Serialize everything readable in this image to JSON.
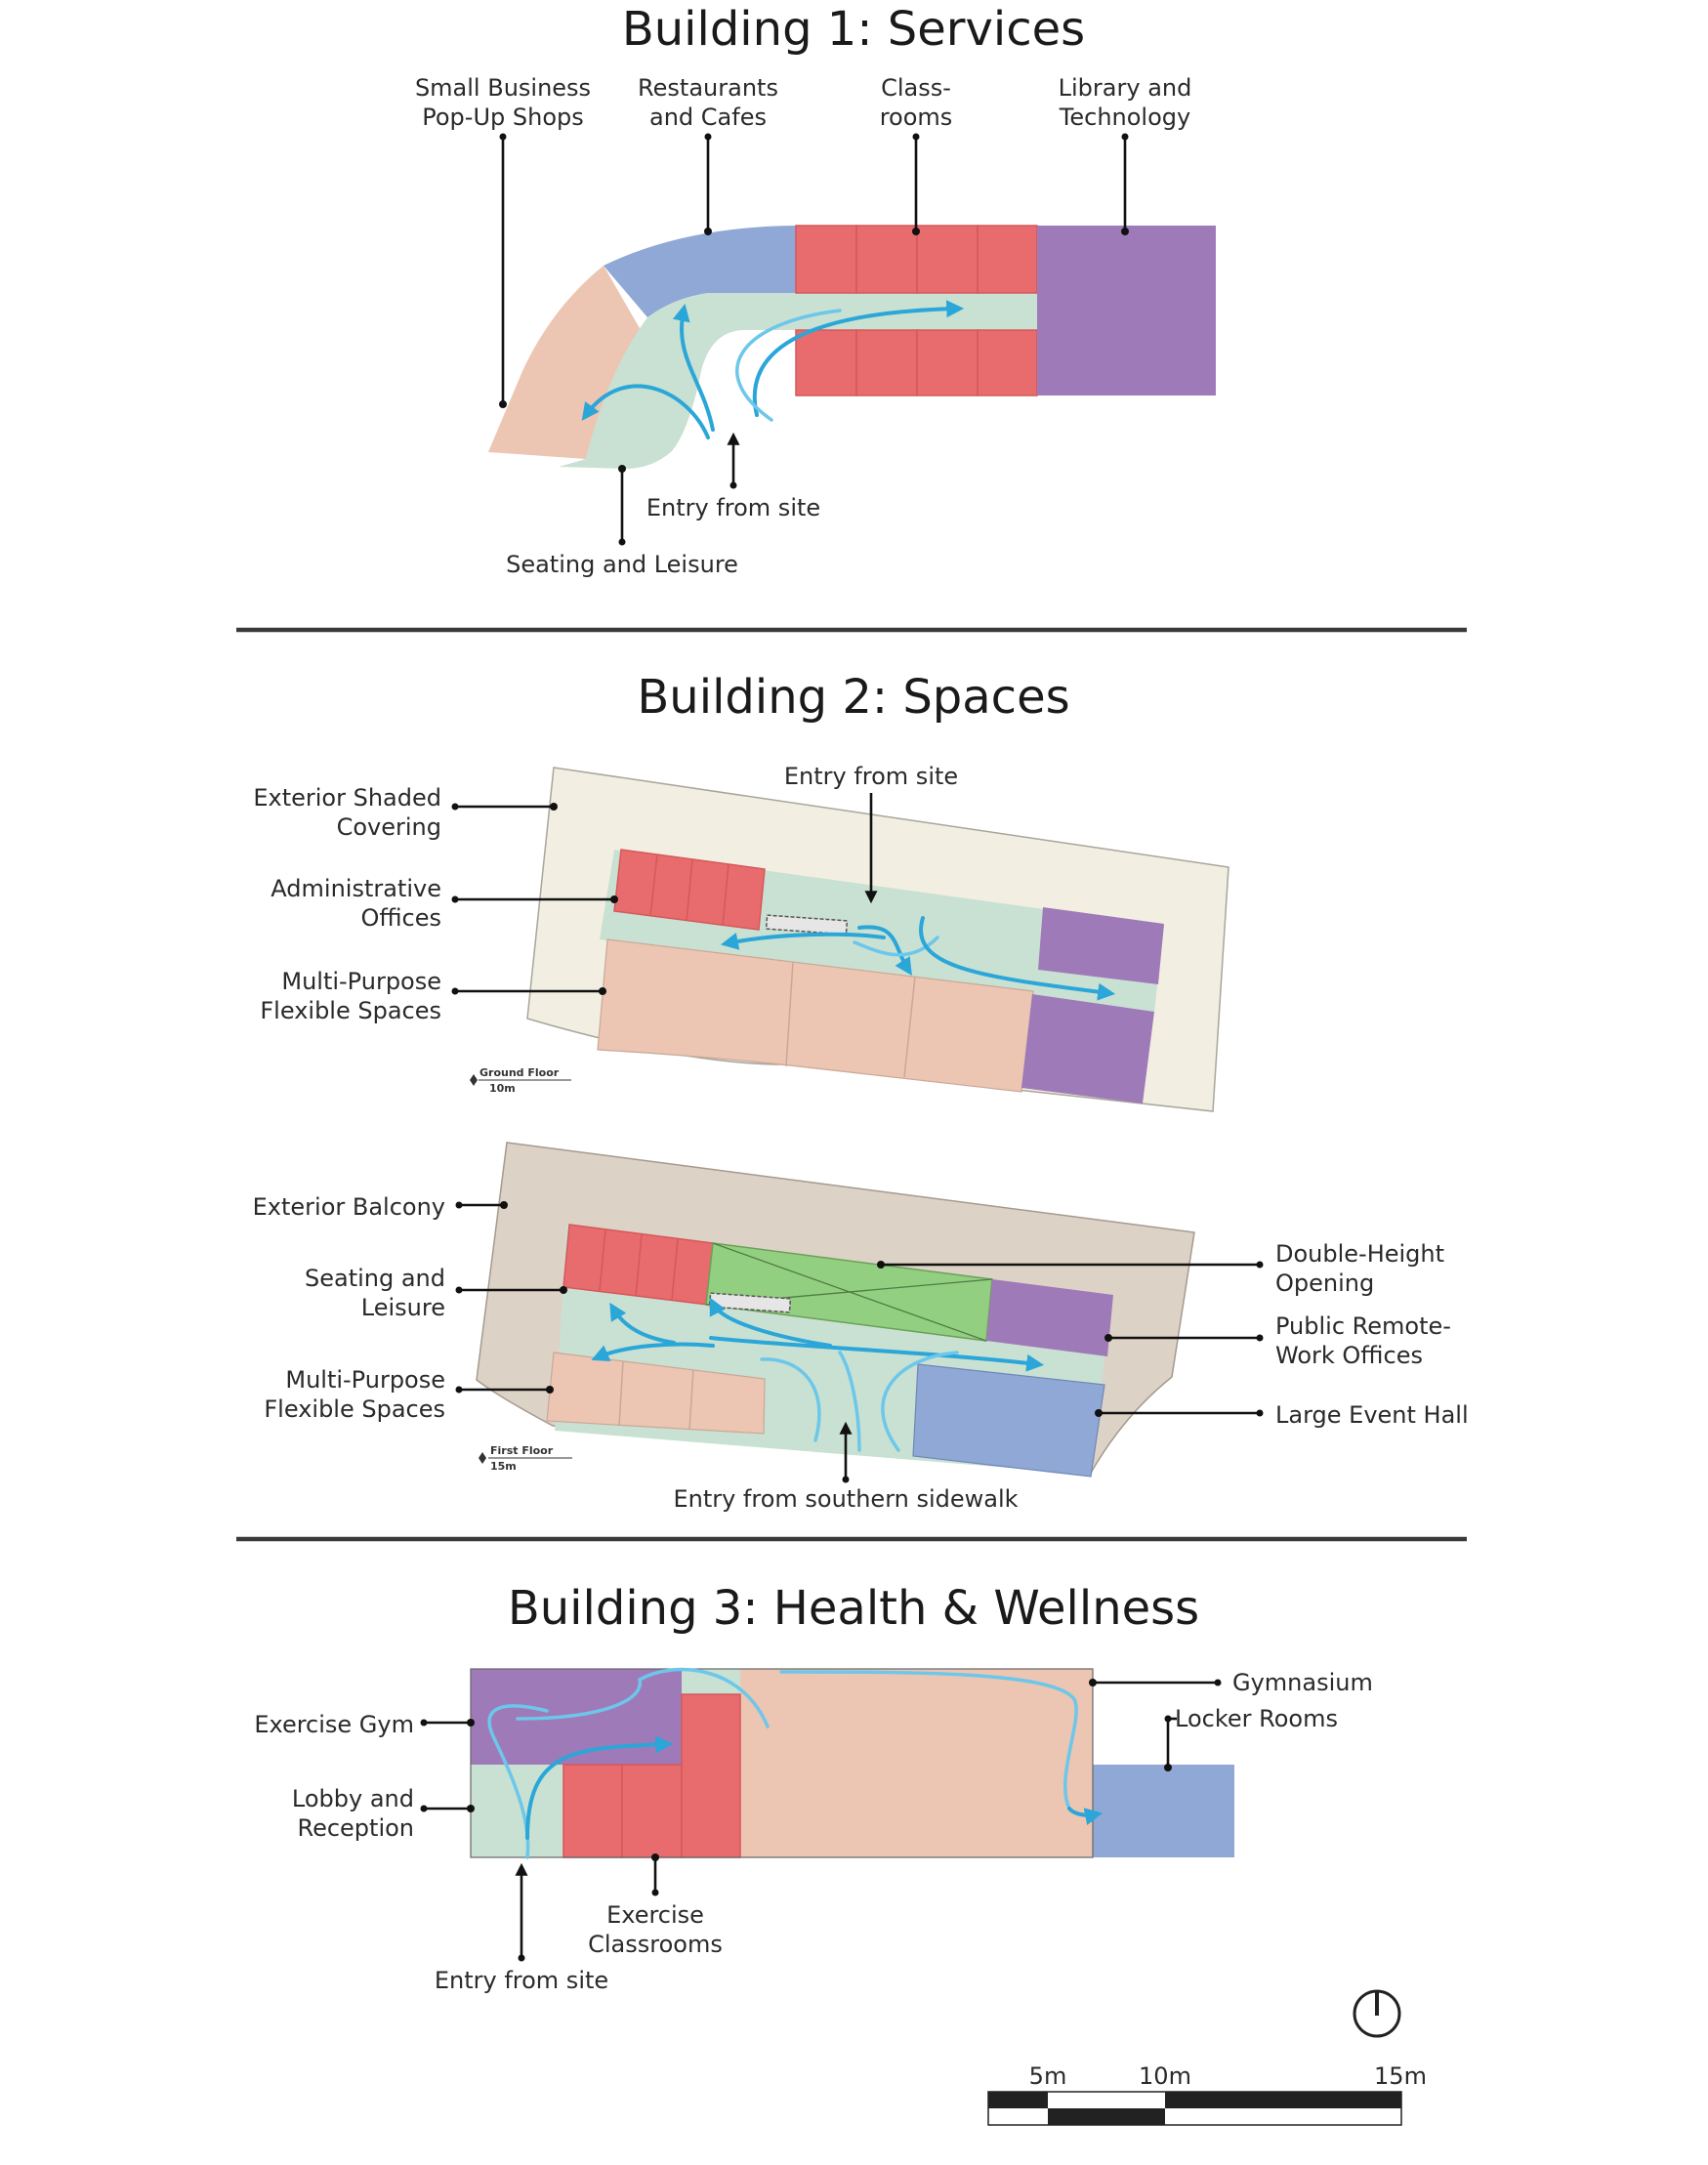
{
  "building1": {
    "title": "Building 1: Services",
    "labels": {
      "popup_l1": "Small Business",
      "popup_l2": "Pop-Up Shops",
      "rest_l1": "Restaurants",
      "rest_l2": "and Cafes",
      "class_l1": "Class-",
      "class_l2": "rooms",
      "lib_l1": "Library and",
      "lib_l2": "Technology",
      "entry": "Entry from site",
      "seating": "Seating and Leisure"
    }
  },
  "building2": {
    "title": "Building 2: Spaces",
    "ground": {
      "floor_l1": "Ground Floor",
      "floor_l2": "10m",
      "entry": "Entry from site",
      "shade_l1": "Exterior Shaded",
      "shade_l2": "Covering",
      "admin_l1": "Administrative",
      "admin_l2": "Offices",
      "multi_l1": "Multi-Purpose",
      "multi_l2": "Flexible Spaces"
    },
    "first": {
      "floor_l1": "First Floor",
      "floor_l2": "15m",
      "balcony": "Exterior Balcony",
      "seating_l1": "Seating and",
      "seating_l2": "Leisure",
      "multi_l1": "Multi-Purpose",
      "multi_l2": "Flexible Spaces",
      "double_l1": "Double-Height",
      "double_l2": "Opening",
      "remote_l1": "Public Remote-",
      "remote_l2": "Work Offices",
      "event": "Large Event Hall",
      "entry": "Entry from southern sidewalk"
    }
  },
  "building3": {
    "title": "Building 3: Health & Wellness",
    "labels": {
      "gymnasium": "Gymnasium",
      "locker": "Locker Rooms",
      "exgym": "Exercise Gym",
      "lobby_l1": "Lobby and",
      "lobby_l2": "Reception",
      "excl_l1": "Exercise",
      "excl_l2": "Classrooms",
      "entry": "Entry from site"
    }
  },
  "scale_bar": {
    "tick_5": "5m",
    "tick_10": "10m",
    "tick_15": "15m"
  },
  "colors": {
    "circulation": "#c9e1d2",
    "classroom_red": "#e86b6d",
    "library_purple": "#9f7ab8",
    "cafe_blue": "#8fa8d6",
    "flex_peach": "#ecc5b3",
    "shade_cream": "#f2efe2",
    "balcony_tan": "#ddd2c6",
    "opening_green": "#93cf80",
    "flow_arrow": "#2aa6d9"
  },
  "icons": [
    "north-arrow-icon",
    "stair-icon"
  ]
}
